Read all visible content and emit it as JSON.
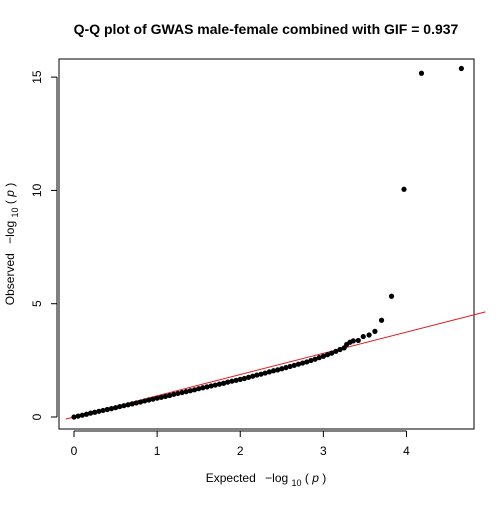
{
  "chart_data": {
    "type": "scatter",
    "title": "Q-Q plot of GWAS male-female combined with GIF = 0.937",
    "xlabel": {
      "prefix": "Expected",
      "neg": "−log",
      "sub": "10",
      "open": "(",
      "var": "p",
      "close": ")"
    },
    "ylabel": {
      "prefix": "Observed",
      "neg": "−log",
      "sub": "10",
      "open": "(",
      "var": "p",
      "close": ")"
    },
    "xlim": [
      0,
      4.8
    ],
    "ylim": [
      0,
      15.8
    ],
    "x_ticks": [
      0,
      1,
      2,
      3,
      4
    ],
    "y_ticks": [
      0,
      5,
      10,
      15
    ],
    "x_tick_labels": [
      "0",
      "1",
      "2",
      "3",
      "4"
    ],
    "y_tick_labels": [
      "0",
      "5",
      "10",
      "15"
    ],
    "grid": false,
    "legend": "none",
    "point_color": "#000000",
    "reference_line": {
      "color": "#e31a1c",
      "intercept": 0,
      "slope": 0.937
    },
    "series": [
      {
        "points": [
          [
            0.0,
            0.0
          ],
          [
            0.05,
            0.04
          ],
          [
            0.1,
            0.08
          ],
          [
            0.15,
            0.12
          ],
          [
            0.2,
            0.17
          ],
          [
            0.25,
            0.21
          ],
          [
            0.3,
            0.25
          ],
          [
            0.35,
            0.29
          ],
          [
            0.4,
            0.33
          ],
          [
            0.45,
            0.37
          ],
          [
            0.5,
            0.41
          ],
          [
            0.55,
            0.46
          ],
          [
            0.6,
            0.5
          ],
          [
            0.65,
            0.54
          ],
          [
            0.7,
            0.58
          ],
          [
            0.75,
            0.62
          ],
          [
            0.8,
            0.66
          ],
          [
            0.85,
            0.71
          ],
          [
            0.9,
            0.75
          ],
          [
            0.95,
            0.79
          ],
          [
            1.0,
            0.83
          ],
          [
            1.05,
            0.87
          ],
          [
            1.1,
            0.91
          ],
          [
            1.15,
            0.95
          ],
          [
            1.2,
            1.0
          ],
          [
            1.25,
            1.04
          ],
          [
            1.3,
            1.08
          ],
          [
            1.35,
            1.12
          ],
          [
            1.4,
            1.16
          ],
          [
            1.45,
            1.2
          ],
          [
            1.5,
            1.25
          ],
          [
            1.55,
            1.29
          ],
          [
            1.6,
            1.33
          ],
          [
            1.65,
            1.37
          ],
          [
            1.7,
            1.41
          ],
          [
            1.75,
            1.45
          ],
          [
            1.8,
            1.49
          ],
          [
            1.85,
            1.54
          ],
          [
            1.9,
            1.58
          ],
          [
            1.95,
            1.62
          ],
          [
            2.0,
            1.66
          ],
          [
            2.05,
            1.7
          ],
          [
            2.1,
            1.75
          ],
          [
            2.15,
            1.8
          ],
          [
            2.2,
            1.85
          ],
          [
            2.25,
            1.89
          ],
          [
            2.3,
            1.94
          ],
          [
            2.35,
            1.99
          ],
          [
            2.4,
            2.04
          ],
          [
            2.45,
            2.08
          ],
          [
            2.5,
            2.13
          ],
          [
            2.55,
            2.18
          ],
          [
            2.6,
            2.23
          ],
          [
            2.65,
            2.28
          ],
          [
            2.7,
            2.33
          ],
          [
            2.75,
            2.38
          ],
          [
            2.8,
            2.43
          ],
          [
            2.85,
            2.49
          ],
          [
            2.9,
            2.55
          ],
          [
            2.95,
            2.62
          ],
          [
            3.0,
            2.68
          ],
          [
            3.05,
            2.75
          ],
          [
            3.1,
            2.82
          ],
          [
            3.15,
            2.9
          ],
          [
            3.2,
            2.98
          ],
          [
            3.25,
            3.05
          ],
          [
            3.28,
            3.2
          ],
          [
            3.32,
            3.3
          ],
          [
            3.36,
            3.36
          ],
          [
            3.42,
            3.38
          ],
          [
            3.48,
            3.55
          ],
          [
            3.55,
            3.62
          ],
          [
            3.62,
            3.78
          ],
          [
            3.7,
            4.27
          ],
          [
            3.82,
            5.33
          ],
          [
            3.97,
            10.05
          ],
          [
            4.18,
            15.17
          ],
          [
            4.66,
            15.38
          ]
        ]
      }
    ]
  }
}
